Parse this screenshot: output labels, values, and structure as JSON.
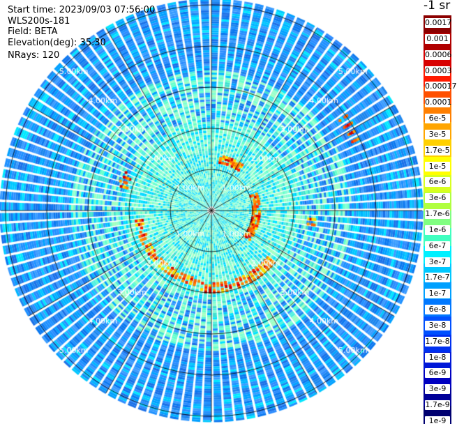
{
  "header": {
    "start_time": "Start time: 2023/09/03 07:56:00",
    "instrument": "WLS200s-181",
    "field": "Field: BETA",
    "elevation": "Elevation(deg): 35.30",
    "nrays": "NRays: 120"
  },
  "colorbar": {
    "unit": "-1 sr",
    "labels": [
      "0.0017",
      "0.001",
      "0.0006",
      "0.0003",
      "0.00017",
      "0.0001",
      "6e-5",
      "3e-5",
      "1.7e-5",
      "1e-5",
      "6e-6",
      "3e-6",
      "1.7e-6",
      "1e-6",
      "6e-7",
      "3e-7",
      "1.7e-7",
      "1e-7",
      "6e-8",
      "3e-8",
      "1.7e-8",
      "1e-8",
      "6e-9",
      "3e-9",
      "1.7e-9",
      "1e-9"
    ],
    "colors": [
      "#8b0000",
      "#b00000",
      "#d80000",
      "#ff1a00",
      "#ff5000",
      "#ff7f00",
      "#ffa500",
      "#ffd000",
      "#ffff00",
      "#d8ff20",
      "#b0ff40",
      "#80ff80",
      "#40ffc0",
      "#00f0ff",
      "#00c8ff",
      "#00a0ff",
      "#0078ff",
      "#0050ff",
      "#0030f0",
      "#0018d8",
      "#0000c0",
      "#000098",
      "#000070"
    ]
  },
  "range_rings": {
    "labels": [
      "1.00km",
      "2.00km",
      "3.00km",
      "4.00km",
      "5.00km"
    ]
  },
  "palette": {
    "background_blue": "#1e90ff",
    "accent_cyan": "#00d8ff",
    "aqua_inner": "#7fffd4",
    "grid": "#000000"
  }
}
